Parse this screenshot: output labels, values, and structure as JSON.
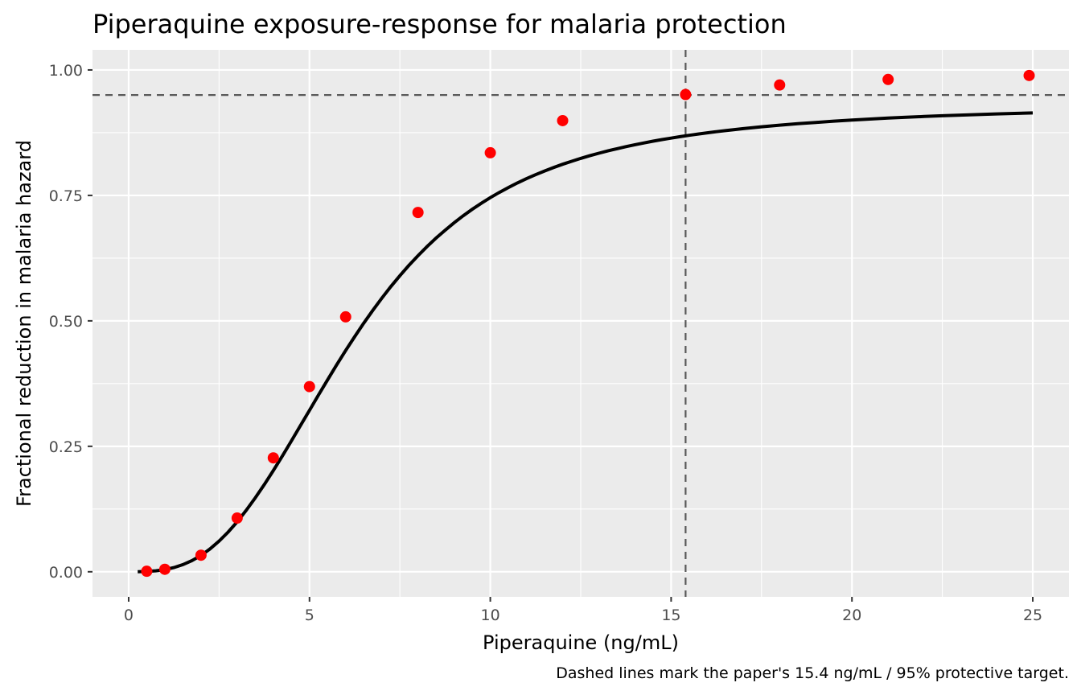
{
  "chart_data": {
    "type": "line",
    "title": "Piperaquine exposure-response for malaria protection",
    "xlabel": "Piperaquine (ng/mL)",
    "ylabel": "Fractional reduction in malaria hazard",
    "caption": "Dashed lines mark the paper's 15.4 ng/mL / 95% protective target.",
    "xlim": [
      -1,
      26
    ],
    "ylim": [
      -0.05,
      1.04
    ],
    "x_ticks": [
      0,
      5,
      10,
      15,
      20,
      25
    ],
    "x_tick_labels": [
      "0",
      "5",
      "10",
      "15",
      "20",
      "25"
    ],
    "y_ticks": [
      0,
      0.25,
      0.5,
      0.75,
      1.0
    ],
    "y_tick_labels": [
      "0.00",
      "0.25",
      "0.50",
      "0.75",
      "1.00"
    ],
    "grid": true,
    "legend": "none",
    "reference_lines": {
      "x": 15.4,
      "y": 0.95
    },
    "curve": {
      "x": [
        0.25,
        0.5,
        0.75,
        1,
        1.25,
        1.5,
        1.75,
        2,
        2.25,
        2.5,
        2.75,
        3,
        3.25,
        3.5,
        3.75,
        4,
        4.25,
        4.5,
        4.75,
        5,
        5.25,
        5.5,
        5.75,
        6,
        6.25,
        6.5,
        6.75,
        7,
        7.25,
        7.5,
        7.75,
        8,
        8.25,
        8.5,
        8.75,
        9,
        9.25,
        9.5,
        9.75,
        10,
        10.25,
        10.5,
        10.75,
        11,
        11.25,
        11.5,
        11.75,
        12,
        12.25,
        12.5,
        12.75,
        13,
        13.25,
        13.5,
        13.75,
        14,
        14.25,
        14.5,
        14.75,
        15,
        15.25,
        15.5,
        15.75,
        16,
        16.25,
        16.5,
        16.75,
        17,
        17.25,
        17.5,
        17.75,
        18,
        18.5,
        19,
        19.5,
        20,
        20.5,
        21,
        21.5,
        22,
        22.5,
        23,
        23.5,
        24,
        24.5,
        25
      ],
      "y": [
        0.0,
        0.0006,
        0.002,
        0.0044,
        0.0084,
        0.0142,
        0.0222,
        0.0326,
        0.0455,
        0.0611,
        0.0791,
        0.0996,
        0.1224,
        0.1472,
        0.1737,
        0.2017,
        0.2308,
        0.2608,
        0.2912,
        0.3218,
        0.3523,
        0.3825,
        0.4121,
        0.4408,
        0.4686,
        0.4953,
        0.5209,
        0.5452,
        0.5682,
        0.59,
        0.6105,
        0.6298,
        0.6479,
        0.6649,
        0.6807,
        0.6955,
        0.7094,
        0.7223,
        0.7343,
        0.7455,
        0.756,
        0.7657,
        0.7748,
        0.7833,
        0.7912,
        0.7986,
        0.8055,
        0.812,
        0.818,
        0.8237,
        0.829,
        0.834,
        0.8386,
        0.843,
        0.8471,
        0.851,
        0.8546,
        0.858,
        0.8612,
        0.8642,
        0.8671,
        0.8698,
        0.8723,
        0.8747,
        0.877,
        0.8791,
        0.8812,
        0.8831,
        0.8849,
        0.8867,
        0.8883,
        0.8899,
        0.8928,
        0.8954,
        0.8979,
        0.9001,
        0.9021,
        0.904,
        0.9057,
        0.9072,
        0.9087,
        0.91,
        0.9112,
        0.9124,
        0.9134,
        0.9144
      ]
    },
    "points": {
      "x": [
        0.5,
        1,
        2,
        3,
        4,
        5,
        6,
        8,
        10,
        12,
        15.4,
        18,
        21,
        24.9
      ],
      "y": [
        0.001,
        0.005,
        0.033,
        0.107,
        0.227,
        0.369,
        0.508,
        0.716,
        0.835,
        0.899,
        0.951,
        0.97,
        0.981,
        0.989
      ]
    }
  },
  "colors": {
    "panel_background": "#ebebeb",
    "grid_major": "#ffffff",
    "curve": "#000000",
    "points": "#ff0000",
    "reference_lines": "#595959"
  }
}
